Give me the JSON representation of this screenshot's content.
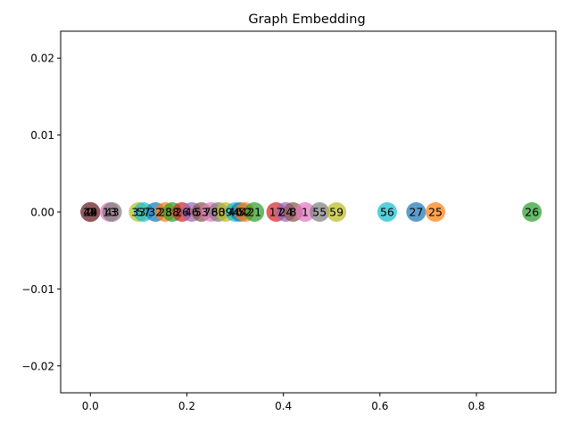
{
  "chart_data": {
    "type": "scatter",
    "title": "Graph Embedding",
    "xlabel": "",
    "ylabel": "",
    "xlim": [
      -0.0615,
      0.9645
    ],
    "ylim": [
      -0.0235,
      0.0235
    ],
    "x_ticks": [
      0.0,
      0.2,
      0.4,
      0.6,
      0.8
    ],
    "x_tick_labels": [
      "0.0",
      "0.2",
      "0.4",
      "0.6",
      "0.8"
    ],
    "y_ticks": [
      0.02,
      0.01,
      0.0,
      -0.01,
      -0.02
    ],
    "y_tick_labels": [
      "0.02",
      "0.01",
      "0.00",
      "−0.01",
      "−0.02"
    ],
    "grid": false,
    "palette": [
      "#1f77b4",
      "#ff7f0e",
      "#2ca02c",
      "#d62728",
      "#9467bd",
      "#8c564b",
      "#e377c2",
      "#7f7f7f",
      "#bcbd22",
      "#17becf"
    ],
    "points": [
      {
        "label": "0",
        "x": 0.0,
        "y": 0.0
      },
      {
        "label": "42",
        "x": 0.0,
        "y": 0.0
      },
      {
        "label": "2",
        "x": 0.0,
        "y": 0.0
      },
      {
        "label": "45",
        "x": 0.0,
        "y": 0.0
      },
      {
        "label": "49",
        "x": 0.0,
        "y": 0.0
      },
      {
        "label": "24",
        "x": 0.0,
        "y": 0.0
      },
      {
        "label": "13",
        "x": 0.04,
        "y": 0.0
      },
      {
        "label": "43",
        "x": 0.045,
        "y": 0.0
      },
      {
        "label": "33",
        "x": 0.1,
        "y": 0.0
      },
      {
        "label": "57",
        "x": 0.11,
        "y": 0.0
      },
      {
        "label": "32",
        "x": 0.135,
        "y": 0.0
      },
      {
        "label": "28",
        "x": 0.155,
        "y": 0.0
      },
      {
        "label": "38",
        "x": 0.17,
        "y": 0.0
      },
      {
        "label": "26",
        "x": 0.19,
        "y": 0.0
      },
      {
        "label": "46",
        "x": 0.21,
        "y": 0.0
      },
      {
        "label": "53",
        "x": 0.23,
        "y": 0.0
      },
      {
        "label": "78",
        "x": 0.25,
        "y": 0.0
      },
      {
        "label": "60",
        "x": 0.265,
        "y": 0.0
      },
      {
        "label": "39",
        "x": 0.28,
        "y": 0.0
      },
      {
        "label": "40",
        "x": 0.3,
        "y": 0.0
      },
      {
        "label": "44",
        "x": 0.31,
        "y": 0.0
      },
      {
        "label": "52",
        "x": 0.32,
        "y": 0.0
      },
      {
        "label": "21",
        "x": 0.34,
        "y": 0.0
      },
      {
        "label": "17",
        "x": 0.385,
        "y": 0.0
      },
      {
        "label": "24",
        "x": 0.405,
        "y": 0.0
      },
      {
        "label": "8",
        "x": 0.42,
        "y": 0.0
      },
      {
        "label": "1",
        "x": 0.445,
        "y": 0.0
      },
      {
        "label": "55",
        "x": 0.475,
        "y": 0.0
      },
      {
        "label": "59",
        "x": 0.51,
        "y": 0.0
      },
      {
        "label": "56",
        "x": 0.615,
        "y": 0.0
      },
      {
        "label": "27",
        "x": 0.675,
        "y": 0.0
      },
      {
        "label": "25",
        "x": 0.715,
        "y": 0.0
      },
      {
        "label": "26",
        "x": 0.915,
        "y": 0.0
      }
    ]
  }
}
